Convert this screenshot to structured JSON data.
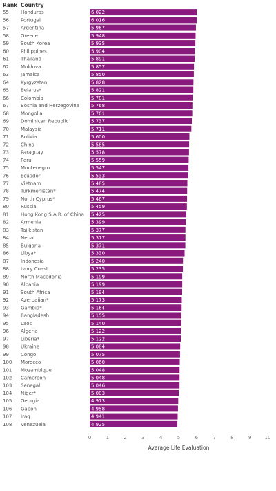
{
  "headers": {
    "rank": "Rank",
    "country": "Country"
  },
  "chart_data": {
    "type": "bar",
    "orientation": "horizontal",
    "xlabel": "Average Life Evaluation",
    "xlim": [
      0,
      10
    ],
    "x_ticks": [
      "0",
      "1",
      "2",
      "3",
      "4",
      "5",
      "6",
      "7",
      "8",
      "9",
      "10"
    ],
    "bar_color": "#8B1A7E",
    "value_label_color": "#ffffff",
    "grid": false,
    "ranks": [
      "55",
      "56",
      "57",
      "58",
      "59",
      "60",
      "61",
      "62",
      "63",
      "64",
      "65",
      "66",
      "67",
      "68",
      "69",
      "70",
      "71",
      "72",
      "73",
      "74",
      "75",
      "76",
      "77",
      "78",
      "79",
      "80",
      "81",
      "82",
      "83",
      "84",
      "85",
      "86",
      "87",
      "88",
      "89",
      "90",
      "91",
      "92",
      "93",
      "94",
      "95",
      "96",
      "97",
      "98",
      "99",
      "100",
      "101",
      "102",
      "103",
      "104",
      "105",
      "106",
      "107",
      "108"
    ],
    "categories": [
      "Honduras",
      "Portugal",
      "Argentina",
      "Greece",
      "South Korea",
      "Philippines",
      "Thailand",
      "Moldova",
      "Jamaica",
      "Kyrgyzstan",
      "Belarus*",
      "Colombia",
      "Bosnia and Herzegovina",
      "Mongolia",
      "Dominican Republic",
      "Malaysia",
      "Bolivia",
      "China",
      "Paraguay",
      "Peru",
      "Montenegro",
      "Ecuador",
      "Vietnam",
      "Turkmenistan*",
      "North Cyprus*",
      "Russia",
      "Hong Kong S.A.R. of China",
      "Armenia",
      "Tajikistan",
      "Nepal",
      "Bulgaria",
      "Libya*",
      "Indonesia",
      "Ivory Coast",
      "North Macedonia",
      "Albania",
      "South Africa",
      "Azerbaijan*",
      "Gambia*",
      "Bangladesh",
      "Laos",
      "Algeria",
      "Liberia*",
      "Ukraine",
      "Congo",
      "Morocco",
      "Mozambique",
      "Cameroon",
      "Senegal",
      "Niger*",
      "Georgia",
      "Gabon",
      "Iraq",
      "Venezuela"
    ],
    "labels": [
      "6.022",
      "6.016",
      "5.967",
      "5.948",
      "5.935",
      "5.904",
      "5.891",
      "5.857",
      "5.850",
      "5.828",
      "5.821",
      "5.781",
      "5.768",
      "5.761",
      "5.737",
      "5.711",
      "5.600",
      "5.585",
      "5.578",
      "5.559",
      "5.547",
      "5.533",
      "5.485",
      "5.474",
      "5.467",
      "5.459",
      "5.425",
      "5.399",
      "5.377",
      "5.377",
      "5.371",
      "5.330",
      "5.240",
      "5.235",
      "5.199",
      "5.199",
      "5.194",
      "5.173",
      "5.164",
      "5.155",
      "5.140",
      "5.122",
      "5.122",
      "5.084",
      "5.075",
      "5.060",
      "5.048",
      "5.048",
      "5.046",
      "5.003",
      "4.973",
      "4.958",
      "4.941",
      "4.925"
    ],
    "values": [
      6.022,
      6.016,
      5.967,
      5.948,
      5.935,
      5.904,
      5.891,
      5.857,
      5.85,
      5.828,
      5.821,
      5.781,
      5.768,
      5.761,
      5.737,
      5.711,
      5.6,
      5.585,
      5.578,
      5.559,
      5.547,
      5.533,
      5.485,
      5.474,
      5.467,
      5.459,
      5.425,
      5.399,
      5.377,
      5.377,
      5.371,
      5.33,
      5.24,
      5.235,
      5.199,
      5.199,
      5.194,
      5.173,
      5.164,
      5.155,
      5.14,
      5.122,
      5.122,
      5.084,
      5.075,
      5.06,
      5.048,
      5.048,
      5.046,
      5.003,
      4.973,
      4.958,
      4.941,
      4.925
    ]
  }
}
